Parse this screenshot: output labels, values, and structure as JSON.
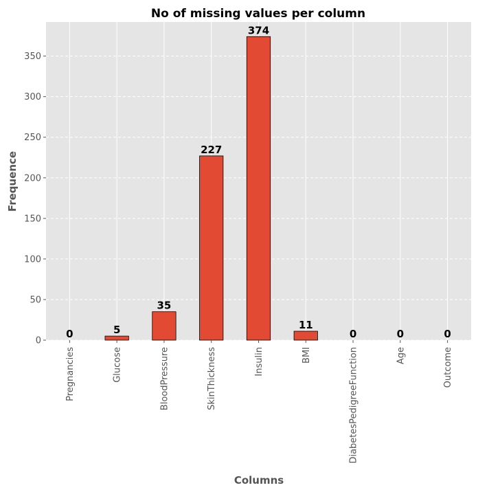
{
  "chart_data": {
    "type": "bar",
    "title": "No of missing values per column",
    "xlabel": "Columns",
    "ylabel": "Frequence",
    "categories": [
      "Pregnancies",
      "Glucose",
      "BloodPressure",
      "SkinThickness",
      "Insulin",
      "BMI",
      "DiabetesPedigreeFunction",
      "Age",
      "Outcome"
    ],
    "values": [
      0,
      5,
      35,
      227,
      374,
      11,
      0,
      0,
      0
    ],
    "ylim": [
      0,
      392
    ],
    "yticks": [
      0,
      50,
      100,
      150,
      200,
      250,
      300,
      350
    ],
    "grid": true,
    "colors": {
      "bar": "#E24A33",
      "bar_edge": "#000000",
      "background": "#E5E5E5",
      "grid": "#FFFFFF"
    }
  }
}
